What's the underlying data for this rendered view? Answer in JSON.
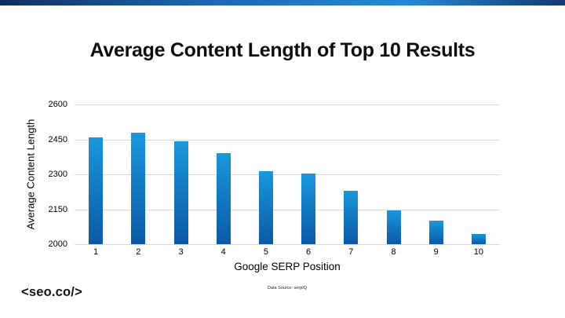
{
  "slide": {
    "title": "Average Content Length of Top 10 Results",
    "logo_text": "<seo.co/>",
    "source_note": "Data Source: serpIQ"
  },
  "chart_data": {
    "type": "bar",
    "title": "Average Content Length of Top 10 Results",
    "categories": [
      "1",
      "2",
      "3",
      "4",
      "5",
      "6",
      "7",
      "8",
      "9",
      "10"
    ],
    "values": [
      2460,
      2480,
      2440,
      2390,
      2315,
      2305,
      2230,
      2145,
      2100,
      2045
    ],
    "xlabel": "Google SERP Position",
    "ylabel": "Average Content Length",
    "ylim": [
      2000,
      2600
    ],
    "yticks": [
      2600,
      2450,
      2300,
      2150,
      2000
    ],
    "grid": true,
    "legend": false,
    "bar_color_top": "#1a97dc",
    "bar_color_bottom": "#0c59a4",
    "gridline_color": "#d9d9d9"
  },
  "theme": {
    "background": "#ffffff",
    "top_bar_gradient": [
      "#122f5e",
      "#1b66ae",
      "#2589d3",
      "#133a6e"
    ]
  }
}
